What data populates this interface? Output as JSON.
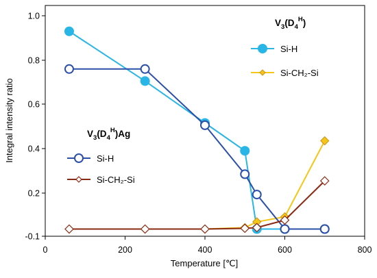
{
  "chart_data": {
    "type": "line",
    "xlabel": "Temperature [℃]",
    "ylabel": "Integral intensity ratio",
    "xlim": [
      0,
      800
    ],
    "ylim": [
      -0.1,
      1.0
    ],
    "x_ticks": [
      "0",
      "200",
      "400",
      "600",
      "800"
    ],
    "y_ticks": [
      "-0.1",
      "0.2",
      "0.4",
      "0.6",
      "0.8",
      "1.0"
    ],
    "groups": [
      {
        "title": {
          "main": "V",
          "sub1": "3",
          "mid": "(D",
          "sub2": "4",
          "sup": "H",
          "end": ")"
        },
        "legend_position": "top-right",
        "series": [
          {
            "name": "Si-H",
            "color": "#29b6e6",
            "marker": "filled-circle",
            "x": [
              60,
              250,
              400,
              500,
              530,
              600,
              700
            ],
            "y": [
              0.93,
              0.705,
              0.515,
              0.39,
              -0.05,
              -0.05,
              -0.05
            ]
          },
          {
            "name": "Si-CH₂-Si",
            "color": "#f5c518",
            "marker": "filled-diamond",
            "x": [
              60,
              250,
              400,
              500,
              530,
              600,
              700
            ],
            "y": [
              -0.05,
              -0.05,
              -0.05,
              -0.04,
              0.0,
              0.035,
              0.435
            ]
          }
        ]
      },
      {
        "title": {
          "main": "V",
          "sub1": "3",
          "mid": "(D",
          "sub2": "4",
          "sup": "H",
          "end": ")Ag"
        },
        "legend_position": "center-left",
        "series": [
          {
            "name": "Si-H",
            "color": "#2b4fa8",
            "marker": "open-circle",
            "x": [
              60,
              250,
              400,
              500,
              530,
              600,
              700
            ],
            "y": [
              0.76,
              0.76,
              0.505,
              0.285,
              0.19,
              -0.05,
              -0.05
            ]
          },
          {
            "name": "Si-CH₂-Si",
            "color": "#8b2a12",
            "marker": "open-diamond",
            "x": [
              60,
              250,
              400,
              500,
              530,
              600,
              700
            ],
            "y": [
              -0.05,
              -0.05,
              -0.05,
              -0.045,
              -0.04,
              0.012,
              0.255
            ]
          }
        ]
      }
    ]
  }
}
